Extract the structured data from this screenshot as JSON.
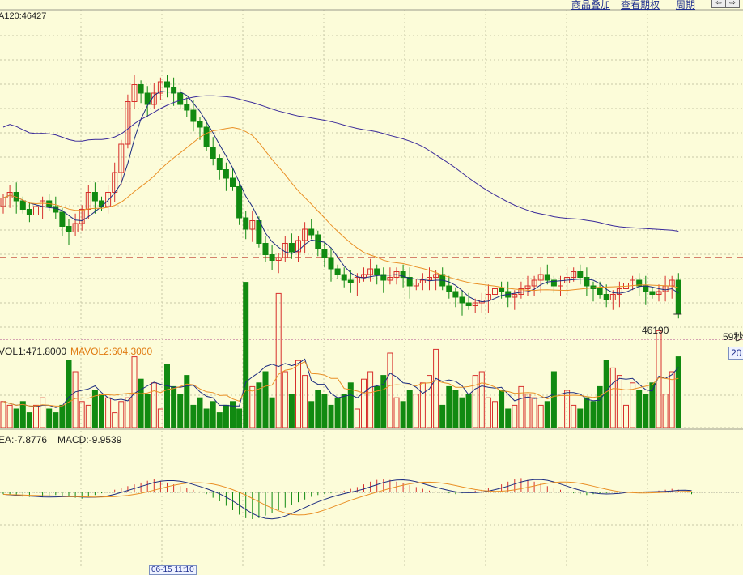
{
  "toolbar": {
    "overlay": "商品叠加",
    "view_period": "查看期权",
    "cycle": "周期",
    "nav_left": "⇦",
    "nav_right": "⇨"
  },
  "main_panel": {
    "ma120_label": "A120:46427",
    "price_annotation": "46190",
    "countdown": "59秒"
  },
  "volume_panel": {
    "vol1_label": "VOL1:471.8000",
    "mavol2_label": "MAVOL2:604.3000",
    "right_badge": "20"
  },
  "macd_panel": {
    "dea_label": "EA:-7.8776",
    "macd_label": "MACD:-9.9539"
  },
  "time_axis": {
    "cursor_time": "06-15 11:10"
  },
  "colors": {
    "background": "#fcfcd9",
    "grid": "#c8c8a8",
    "up": "#d7302c",
    "down": "#118a11",
    "ma_fast": "#1d2c80",
    "ma_mid": "#e98f25",
    "ma_long": "#3a2a9a",
    "dashed_level": "#c0392b"
  },
  "chart_data": [
    {
      "type": "candlestick",
      "panel": "price",
      "open": [
        40,
        43,
        45,
        42,
        39,
        37,
        40,
        42,
        40,
        38,
        33,
        31,
        34,
        39,
        45,
        42,
        40,
        45,
        52,
        62,
        77,
        83,
        80,
        76,
        80,
        84,
        82,
        80,
        76,
        74,
        70,
        68,
        61,
        57,
        53,
        50,
        47,
        36,
        32,
        35,
        27,
        23,
        21,
        22,
        27,
        24,
        28,
        32,
        30,
        25,
        22,
        18,
        16,
        14,
        13,
        15,
        16,
        18,
        16,
        14,
        15,
        17,
        15,
        12,
        13,
        14,
        15,
        16,
        12,
        10,
        8,
        6,
        5,
        6,
        7,
        9,
        11,
        10,
        8,
        9,
        11,
        12,
        14,
        16,
        14,
        12,
        13,
        15,
        17,
        15,
        12,
        11,
        9,
        7,
        9,
        11,
        13,
        14,
        12,
        10,
        9,
        10,
        12,
        14
      ],
      "close": [
        43,
        45,
        42,
        39,
        37,
        40,
        42,
        40,
        38,
        33,
        31,
        34,
        39,
        45,
        42,
        40,
        45,
        52,
        62,
        77,
        83,
        80,
        76,
        80,
        84,
        82,
        80,
        76,
        74,
        70,
        68,
        61,
        57,
        53,
        50,
        47,
        36,
        32,
        35,
        27,
        23,
        21,
        22,
        27,
        24,
        28,
        32,
        30,
        25,
        22,
        18,
        16,
        14,
        13,
        15,
        16,
        18,
        16,
        14,
        15,
        17,
        15,
        12,
        13,
        14,
        15,
        16,
        12,
        10,
        8,
        6,
        5,
        6,
        7,
        9,
        11,
        10,
        8,
        9,
        11,
        12,
        14,
        16,
        14,
        12,
        13,
        15,
        17,
        15,
        12,
        11,
        9,
        7,
        9,
        11,
        13,
        14,
        12,
        10,
        9,
        10,
        12,
        14,
        2
      ]
    },
    {
      "type": "bar",
      "panel": "volume",
      "values": [
        14,
        12,
        10,
        14,
        8,
        12,
        16,
        10,
        8,
        12,
        36,
        30,
        14,
        12,
        20,
        18,
        16,
        8,
        14,
        16,
        38,
        26,
        18,
        24,
        10,
        34,
        22,
        18,
        28,
        12,
        16,
        10,
        14,
        8,
        12,
        14,
        10,
        78,
        22,
        24,
        30,
        16,
        72,
        30,
        18,
        36,
        28,
        14,
        20,
        18,
        12,
        16,
        18,
        24,
        10,
        26,
        30,
        22,
        28,
        40,
        16,
        14,
        20,
        18,
        24,
        28,
        42,
        12,
        22,
        20,
        16,
        18,
        28,
        30,
        16,
        14,
        20,
        10,
        12,
        22,
        18,
        16,
        12,
        14,
        30,
        18,
        20,
        12,
        10,
        16,
        14,
        22,
        36,
        32,
        28,
        12,
        24,
        20,
        18,
        24,
        52,
        18,
        30,
        38
      ]
    },
    {
      "type": "bar",
      "panel": "macd",
      "values": [
        -4,
        -6,
        -8,
        -10,
        -10,
        -12,
        -10,
        -8,
        -6,
        -8,
        -10,
        -12,
        -14,
        -10,
        -6,
        -2,
        2,
        6,
        10,
        14,
        18,
        22,
        26,
        30,
        26,
        22,
        18,
        14,
        10,
        6,
        2,
        -4,
        -12,
        -20,
        -30,
        -40,
        -50,
        -58,
        -60,
        -58,
        -52,
        -46,
        -40,
        -34,
        -28,
        -22,
        -16,
        -10,
        -6,
        -4,
        -2,
        2,
        4,
        8,
        12,
        18,
        24,
        28,
        30,
        28,
        24,
        20,
        16,
        12,
        8,
        4,
        2,
        0,
        -2,
        -4,
        -2,
        2,
        4,
        6,
        10,
        14,
        18,
        24,
        30,
        32,
        28,
        24,
        20,
        14,
        10,
        6,
        2,
        -2,
        -4,
        -6,
        -4,
        -2,
        -2,
        0,
        2,
        4,
        2,
        -2,
        0,
        2,
        4,
        6,
        8,
        6,
        2,
        -4
      ]
    }
  ]
}
